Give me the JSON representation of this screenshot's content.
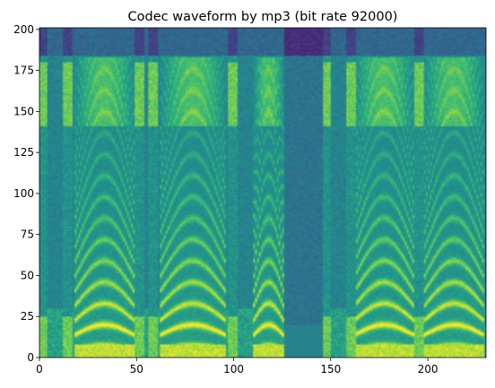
{
  "chart_data": {
    "type": "heatmap",
    "title": "Codec waveform by mp3 (bit rate 92000)",
    "xlabel": "",
    "ylabel": "",
    "xlim": [
      0,
      230
    ],
    "ylim": [
      0,
      201
    ],
    "x_ticks": [
      0,
      50,
      100,
      150,
      200
    ],
    "y_ticks": [
      0,
      25,
      50,
      75,
      100,
      125,
      150,
      175,
      200
    ],
    "colormap": "viridis",
    "grid": false,
    "legend": "none",
    "notes": {
      "voiced_segments_x": [
        [
          18,
          48
        ],
        [
          62,
          95
        ],
        [
          110,
          125
        ],
        [
          162,
          192
        ],
        [
          198,
          228
        ]
      ],
      "silent_gaps_x": [
        [
          0,
          3
        ],
        [
          12,
          16
        ],
        [
          49,
          53
        ],
        [
          56,
          60
        ],
        [
          97,
          101
        ],
        [
          146,
          149
        ],
        [
          158,
          162
        ],
        [
          193,
          197
        ]
      ],
      "dark_band_x": [
        125,
        146
      ],
      "high_freq_cutoff_y": 183
    }
  }
}
